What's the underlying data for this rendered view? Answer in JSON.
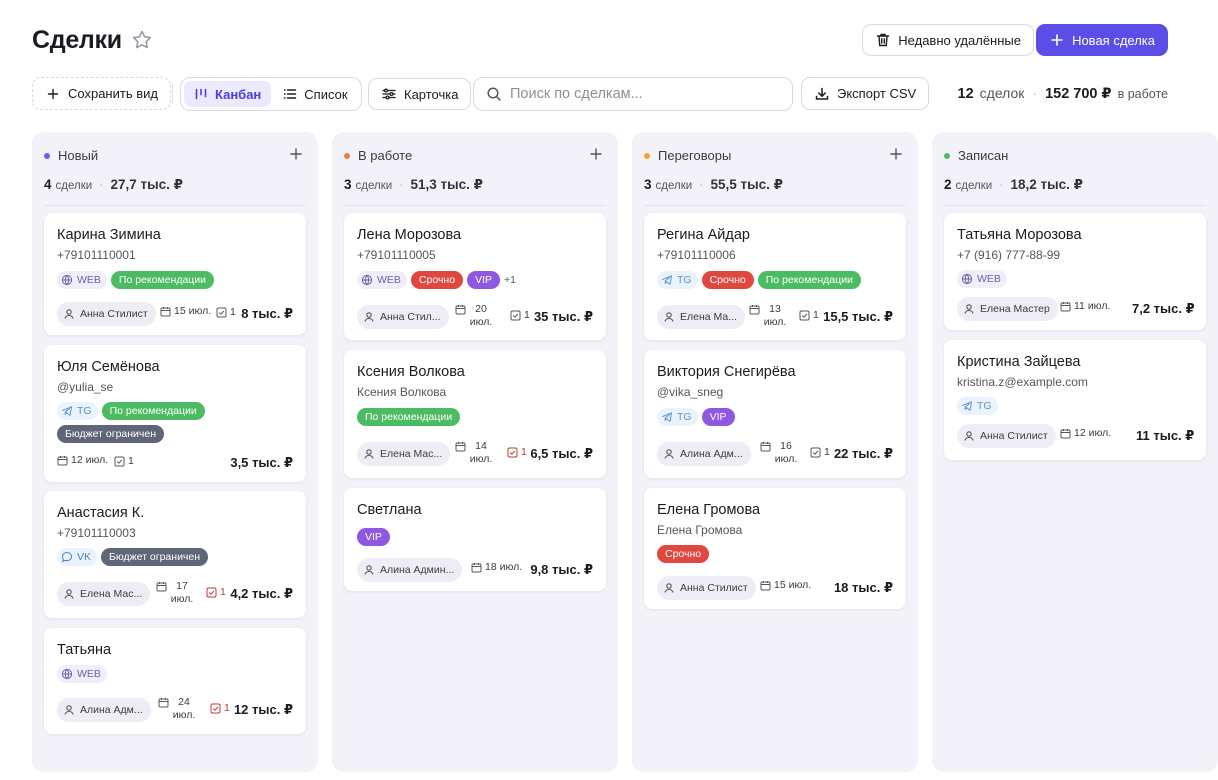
{
  "header": {
    "title": "Сделки",
    "deleted_label": "Недавно удалённые",
    "new_label": "Новая сделка"
  },
  "toolbar": {
    "save_view": "Сохранить вид",
    "view_kanban": "Канбан",
    "view_list": "Список",
    "view_card": "Карточка",
    "search_placeholder": "Поиск по сделкам...",
    "export": "Экспорт CSV",
    "summary_count": "12",
    "summary_count_label": "сделок",
    "summary_sum": "152 700 ₽",
    "summary_sum_label": "в работе"
  },
  "columns": [
    {
      "name": "Новый",
      "color": "#6a5ff0",
      "count": "4",
      "word": "сделки",
      "sum": "27,7 тыс. ₽",
      "cards": [
        {
          "name": "Карина Зимина",
          "sub": "+79101110001",
          "source": "WEB",
          "tags": [
            "По рекомендации"
          ],
          "owner": "Анна Стилист",
          "date": "15 июл.",
          "tasks": "1",
          "amount": "8 тыс. ₽"
        },
        {
          "name": "Юля Семёнова",
          "sub": "@yulia_se",
          "source": "TG",
          "tags": [
            "По рекомендации",
            "Бюджет ограничен"
          ],
          "date": "12 июл.",
          "tasks": "1",
          "amount": "3,5 тыс. ₽"
        },
        {
          "name": "Анастасия К.",
          "sub": "+79101110003",
          "source": "VK",
          "tags": [
            "Бюджет ограничен"
          ],
          "owner": "Елена Мас...",
          "date": "17 июл.",
          "tasks": "1",
          "amount": "4,2 тыс. ₽"
        },
        {
          "name": "Татьяна",
          "source": "WEB",
          "owner": "Алина Адм...",
          "date": "24 июл.",
          "tasks": "1",
          "amount": "12 тыс. ₽"
        }
      ]
    },
    {
      "name": "В работе",
      "color": "#ee7a45",
      "count": "3",
      "word": "сделки",
      "sum": "51,3 тыс. ₽",
      "cards": [
        {
          "name": "Лена Морозова",
          "sub": "+79101110005",
          "source": "WEB",
          "tags": [
            "Срочно",
            "VIP"
          ],
          "more": "+1",
          "owner": "Анна Стил...",
          "date": "20 июл.",
          "tasks": "1",
          "amount": "35 тыс. ₽"
        },
        {
          "name": "Ксения Волкова",
          "sub": "Ксения Волкова",
          "tags": [
            "По рекомендации"
          ],
          "owner": "Елена Мас...",
          "date": "14 июл.",
          "tasks": "1",
          "amount": "6,5 тыс. ₽"
        },
        {
          "name": "Светлана",
          "tags": [
            "VIP"
          ],
          "owner": "Алина Админ...",
          "date": "18 июл.",
          "amount": "9,8 тыс. ₽"
        }
      ]
    },
    {
      "name": "Переговоры",
      "color": "#f0a531",
      "count": "3",
      "word": "сделки",
      "sum": "55,5 тыс. ₽",
      "cards": [
        {
          "name": "Регина Айдар",
          "sub": "+79101110006",
          "source": "TG",
          "tags": [
            "Срочно",
            "По рекомендации"
          ],
          "owner": "Елена Ма...",
          "date": "13 июл.",
          "tasks": "1",
          "amount": "15,5 тыс. ₽"
        },
        {
          "name": "Виктория Снегирёва",
          "sub": "@vika_sneg",
          "source": "TG",
          "tags": [
            "VIP"
          ],
          "owner": "Алина Адм...",
          "date": "16 июл.",
          "tasks": "1",
          "amount": "22 тыс. ₽"
        },
        {
          "name": "Елена Громова",
          "sub": "Елена Громова",
          "tags": [
            "Срочно"
          ],
          "owner": "Анна Стилист",
          "date": "15 июл.",
          "amount": "18 тыс. ₽"
        }
      ]
    },
    {
      "name": "Записан",
      "color": "#4cbc63",
      "count": "2",
      "word": "сделки",
      "sum": "18,2 тыс. ₽",
      "cards": [
        {
          "name": "Татьяна Морозова",
          "sub": "+7 (916) 777-88-99",
          "source": "WEB",
          "owner": "Елена Мастер",
          "date": "11 июл.",
          "amount": "7,2 тыс. ₽"
        },
        {
          "name": "Кристина Зайцева",
          "sub": "kristina.z@example.com",
          "source": "TG",
          "owner": "Анна Стилист",
          "date": "12 июл.",
          "amount": "11 тыс. ₽"
        }
      ]
    }
  ]
}
